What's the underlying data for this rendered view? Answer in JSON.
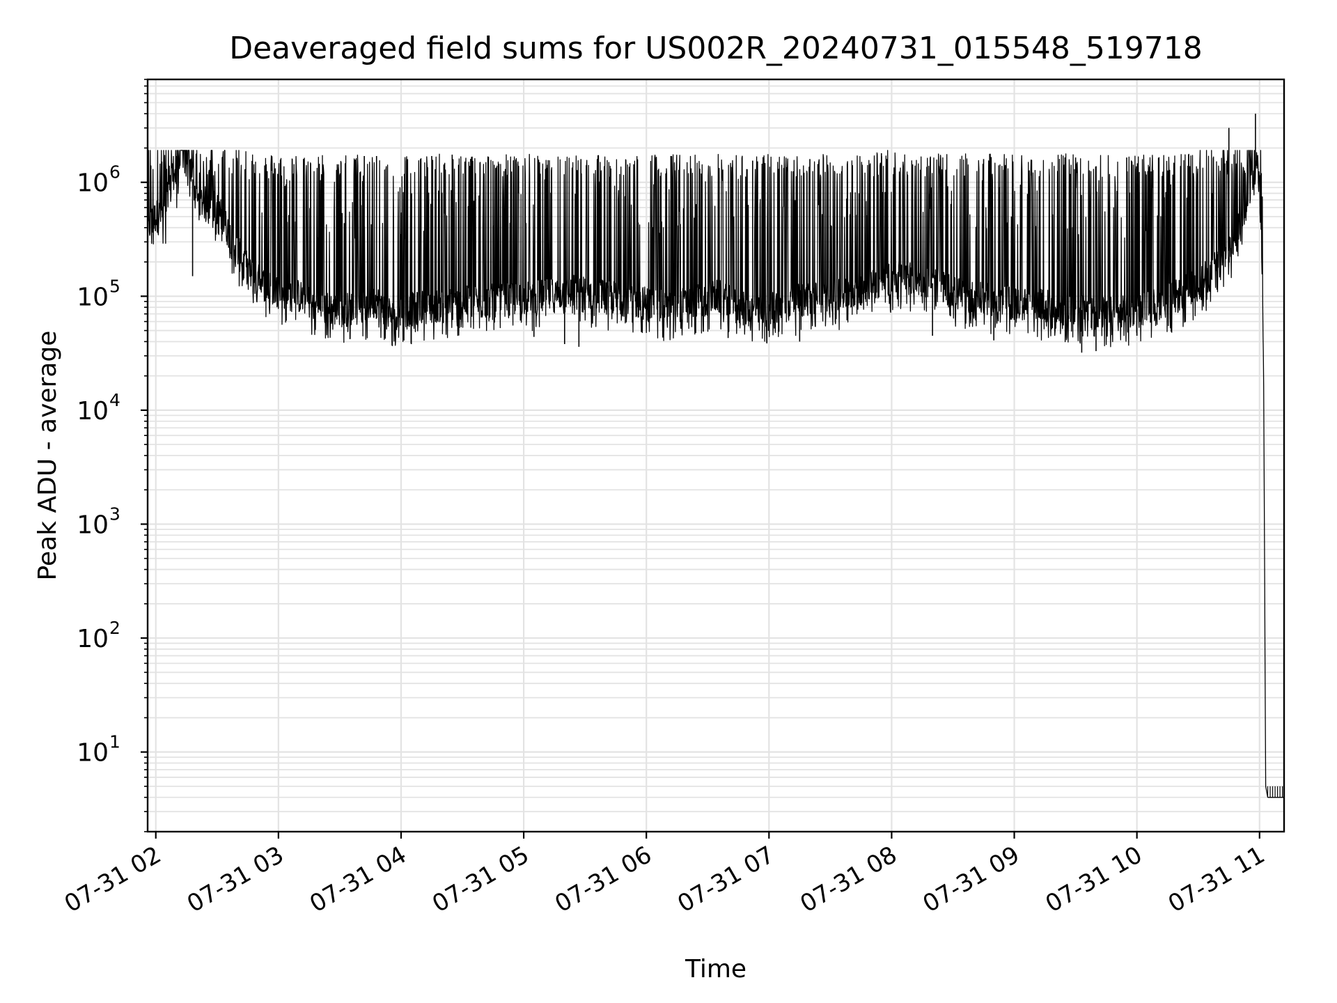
{
  "chart_data": {
    "type": "line",
    "title": "Deaveraged field sums for US002R_20240731_015548_519718",
    "xlabel": "Time",
    "ylabel": "Peak ADU - average",
    "x_unit": "hours (time of day, 2024-07-31)",
    "x_range": [
      "07-31 01:56",
      "07-31 11:12"
    ],
    "y_scale": "log",
    "ylim": [
      2,
      8000000
    ],
    "grid": true,
    "legend": "none",
    "x_ticks": [
      "07-31 02",
      "07-31 03",
      "07-31 04",
      "07-31 05",
      "07-31 06",
      "07-31 07",
      "07-31 08",
      "07-31 09",
      "07-31 10",
      "07-31 11"
    ],
    "y_ticks": [
      {
        "base": "10",
        "exp": "1"
      },
      {
        "base": "10",
        "exp": "2"
      },
      {
        "base": "10",
        "exp": "3"
      },
      {
        "base": "10",
        "exp": "4"
      },
      {
        "base": "10",
        "exp": "5"
      },
      {
        "base": "10",
        "exp": "6"
      }
    ],
    "line_color": "#000000",
    "series": [
      {
        "style": "dense noisy black line",
        "points": [
          [
            "01:56",
            400000
          ],
          [
            "02:00",
            500000
          ],
          [
            "02:05",
            550000
          ],
          [
            "02:07",
            1200000
          ],
          [
            "02:10",
            1100000
          ],
          [
            "02:13",
            3000000
          ],
          [
            "02:20",
            700000
          ],
          [
            "02:30",
            600000
          ],
          [
            "02:40",
            250000
          ],
          [
            "02:47",
            150000
          ],
          [
            "02:55",
            120000
          ],
          [
            "03:00",
            110000
          ],
          [
            "03:10",
            100000
          ],
          [
            "03:20",
            80000
          ],
          [
            "03:30",
            75000
          ],
          [
            "03:40",
            80000
          ],
          [
            "03:48",
            90000
          ],
          [
            "03:55",
            70000
          ],
          [
            "04:10",
            80000
          ],
          [
            "04:25",
            85000
          ],
          [
            "04:40",
            90000
          ],
          [
            "04:55",
            95000
          ],
          [
            "05:10",
            100000
          ],
          [
            "05:25",
            110000
          ],
          [
            "05:40",
            100000
          ],
          [
            "05:55",
            90000
          ],
          [
            "06:10",
            80000
          ],
          [
            "06:25",
            90000
          ],
          [
            "06:35",
            100000
          ],
          [
            "06:45",
            80000
          ],
          [
            "06:55",
            70000
          ],
          [
            "07:05",
            85000
          ],
          [
            "07:20",
            95000
          ],
          [
            "07:35",
            100000
          ],
          [
            "07:50",
            130000
          ],
          [
            "08:05",
            150000
          ],
          [
            "08:20",
            130000
          ],
          [
            "08:35",
            100000
          ],
          [
            "08:50",
            90000
          ],
          [
            "09:05",
            85000
          ],
          [
            "09:20",
            80000
          ],
          [
            "09:35",
            75000
          ],
          [
            "09:50",
            70000
          ],
          [
            "10:05",
            80000
          ],
          [
            "10:20",
            100000
          ],
          [
            "10:35",
            150000
          ],
          [
            "10:45",
            250000
          ],
          [
            "10:52",
            600000
          ],
          [
            "10:57",
            1200000
          ],
          [
            "10:59",
            1500000
          ],
          [
            "11:00",
            1000000
          ],
          [
            "11:01",
            300000
          ],
          [
            "11:02",
            20000
          ],
          [
            "11:03",
            5
          ],
          [
            "11:04",
            4
          ],
          [
            "11:06",
            4
          ],
          [
            "11:08",
            4
          ],
          [
            "11:10",
            4
          ],
          [
            "11:12",
            4
          ]
        ],
        "spikes_up": [
          [
            "02:13",
            3000000
          ],
          [
            "03:42",
            1700000
          ],
          [
            "03:48",
            1700000
          ],
          [
            "04:15",
            1700000
          ],
          [
            "04:25",
            1750000
          ],
          [
            "05:28",
            1600000
          ],
          [
            "06:12",
            1700000
          ],
          [
            "06:52",
            1550000
          ],
          [
            "07:20",
            1600000
          ],
          [
            "07:55",
            1800000
          ],
          [
            "08:45",
            1600000
          ],
          [
            "09:30",
            1650000
          ],
          [
            "09:55",
            1650000
          ],
          [
            "10:45",
            3000000
          ],
          [
            "10:58",
            4000000
          ]
        ],
        "spikes_down": [
          [
            "02:18",
            150000
          ],
          [
            "03:35",
            42000
          ],
          [
            "04:05",
            38000
          ],
          [
            "05:05",
            44000
          ],
          [
            "05:20",
            38000
          ],
          [
            "05:27",
            36000
          ],
          [
            "06:40",
            43000
          ],
          [
            "07:15",
            40000
          ],
          [
            "08:20",
            45000
          ],
          [
            "08:50",
            41000
          ],
          [
            "09:33",
            32000
          ],
          [
            "09:40",
            33000
          ],
          [
            "10:00",
            45000
          ]
        ]
      }
    ]
  }
}
